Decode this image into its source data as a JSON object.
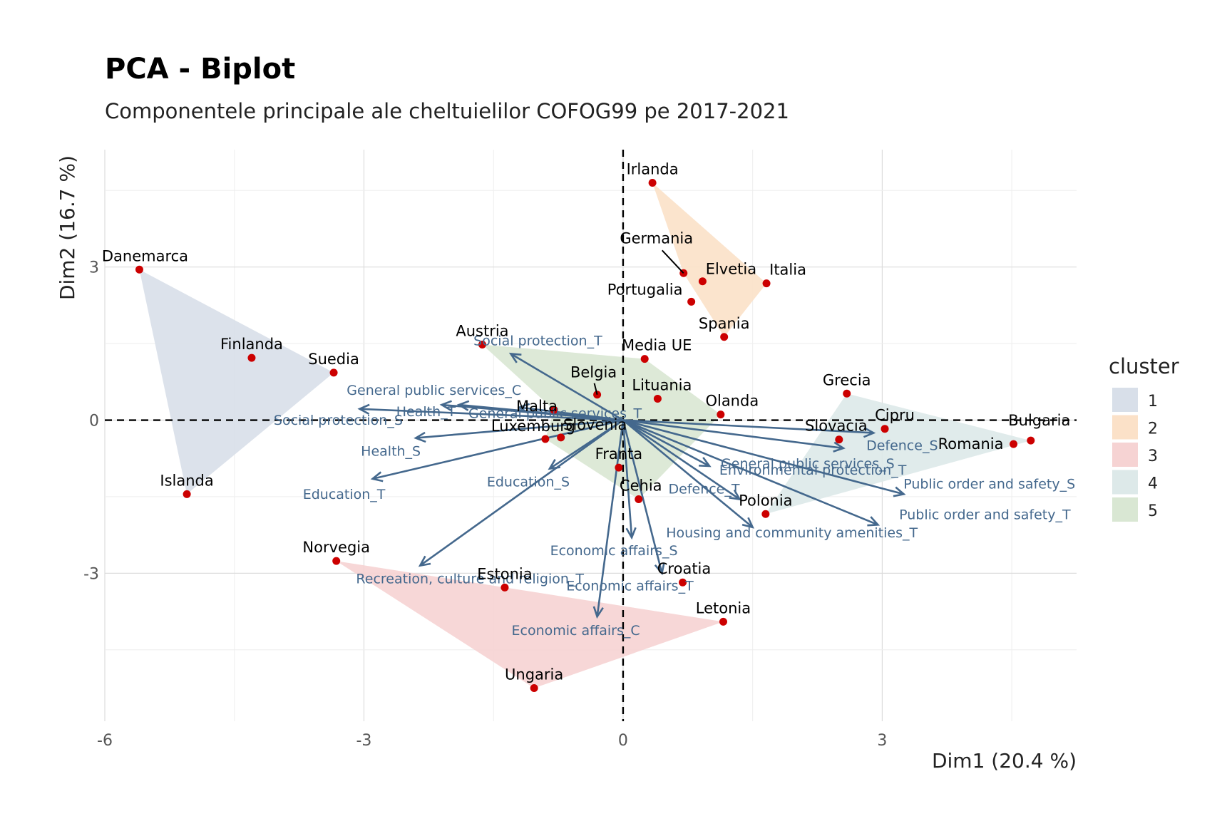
{
  "chart_data": {
    "type": "scatter",
    "subtype": "pca-biplot",
    "title": "PCA - Biplot",
    "subtitle": "Componentele principale ale cheltuielilor COFOG99 pe 2017-2021",
    "xlabel": "Dim1 (20.4 %)",
    "ylabel": "Dim2 (16.7 %)",
    "xlim": [
      -6.0,
      5.25
    ],
    "ylim": [
      -5.9,
      5.3
    ],
    "x_ticks": [
      -6,
      -3,
      0,
      3
    ],
    "y_ticks": [
      -3,
      0,
      3
    ],
    "x_tick_labels": [
      "-6",
      "-3",
      "0",
      "3"
    ],
    "y_tick_labels": [
      "-3",
      "0",
      "3"
    ],
    "grid": true,
    "reference_lines": [
      "x = 0 (dashed)",
      "y = 0 (dashed)"
    ],
    "legend": {
      "title": "cluster",
      "position": "right",
      "entries": [
        {
          "label": "1",
          "color": "#d8dfe9"
        },
        {
          "label": "2",
          "color": "#fbe1c8"
        },
        {
          "label": "3",
          "color": "#f6d3d3"
        },
        {
          "label": "4",
          "color": "#dde9e9"
        },
        {
          "label": "5",
          "color": "#d9e7d3"
        }
      ]
    },
    "point_color": "#cc0000",
    "arrow_color": "#44688d",
    "points": [
      {
        "label": "Danemarca",
        "x": -5.6,
        "y": 2.95,
        "cluster": "1"
      },
      {
        "label": "Finlanda",
        "x": -4.3,
        "y": 1.22,
        "cluster": "1"
      },
      {
        "label": "Suedia",
        "x": -3.35,
        "y": 0.93,
        "cluster": "1"
      },
      {
        "label": "Islanda",
        "x": -5.05,
        "y": -1.45,
        "cluster": "1"
      },
      {
        "label": "Irlanda",
        "x": 0.34,
        "y": 4.65,
        "cluster": "2"
      },
      {
        "label": "Germania",
        "x": 0.7,
        "y": 2.88,
        "cluster": "2"
      },
      {
        "label": "Elvetia",
        "x": 0.92,
        "y": 2.72,
        "cluster": "2"
      },
      {
        "label": "Italia",
        "x": 1.66,
        "y": 2.68,
        "cluster": "2"
      },
      {
        "label": "Portugalia",
        "x": 0.79,
        "y": 2.32,
        "cluster": "2"
      },
      {
        "label": "Spania",
        "x": 1.17,
        "y": 1.63,
        "cluster": "2"
      },
      {
        "label": "Norvegia",
        "x": -3.32,
        "y": -2.76,
        "cluster": "3"
      },
      {
        "label": "Estonia",
        "x": -1.37,
        "y": -3.28,
        "cluster": "3"
      },
      {
        "label": "Letonia",
        "x": 1.16,
        "y": -3.95,
        "cluster": "3"
      },
      {
        "label": "Ungaria",
        "x": -1.03,
        "y": -5.25,
        "cluster": "3"
      },
      {
        "label": "Croatia",
        "x": 0.69,
        "y": -3.18,
        "cluster": "3"
      },
      {
        "label": "Grecia",
        "x": 2.59,
        "y": 0.52,
        "cluster": "4"
      },
      {
        "label": "Cipru",
        "x": 3.03,
        "y": -0.17,
        "cluster": "4"
      },
      {
        "label": "Bulgaria",
        "x": 4.72,
        "y": -0.4,
        "cluster": "4"
      },
      {
        "label": "Romania",
        "x": 4.52,
        "y": -0.47,
        "cluster": "4"
      },
      {
        "label": "Slovacia",
        "x": 2.5,
        "y": -0.38,
        "cluster": "4"
      },
      {
        "label": "Polonia",
        "x": 1.65,
        "y": -1.84,
        "cluster": "4"
      },
      {
        "label": "Austria",
        "x": -1.63,
        "y": 1.48,
        "cluster": "5"
      },
      {
        "label": "Media UE",
        "x": 0.25,
        "y": 1.2,
        "cluster": "5"
      },
      {
        "label": "Belgia",
        "x": -0.3,
        "y": 0.5,
        "cluster": "5"
      },
      {
        "label": "Lituania",
        "x": 0.4,
        "y": 0.42,
        "cluster": "5"
      },
      {
        "label": "Olanda",
        "x": 1.13,
        "y": 0.11,
        "cluster": "5"
      },
      {
        "label": "Malta",
        "x": -0.8,
        "y": 0.2,
        "cluster": "5"
      },
      {
        "label": "Luxemburg",
        "x": -0.9,
        "y": -0.37,
        "cluster": "5"
      },
      {
        "label": "Slovenia",
        "x": -0.72,
        "y": -0.34,
        "cluster": "5"
      },
      {
        "label": "Franta",
        "x": -0.05,
        "y": -0.93,
        "cluster": "5"
      },
      {
        "label": "Cehia",
        "x": 0.18,
        "y": -1.55,
        "cluster": "5"
      }
    ],
    "hulls": [
      {
        "cluster": "1",
        "points": [
          "Danemarca",
          "Suedia",
          "Islanda"
        ]
      },
      {
        "cluster": "2",
        "points": [
          "Irlanda",
          "Italia",
          "Spania",
          "Germania"
        ]
      },
      {
        "cluster": "3",
        "points": [
          "Norvegia",
          "Letonia",
          "Ungaria"
        ]
      },
      {
        "cluster": "4",
        "points": [
          "Grecia",
          "Bulgaria",
          "Polonia"
        ]
      },
      {
        "cluster": "5",
        "points": [
          "Austria",
          "Media UE",
          "Olanda",
          "Cehia",
          "Luxemburg",
          "Malta"
        ]
      }
    ],
    "variables": [
      {
        "label": "Social protection_T",
        "x": -1.3,
        "y": 1.3
      },
      {
        "label": "General public services_C",
        "x": -1.9,
        "y": 0.3
      },
      {
        "label": "Social protection_S",
        "x": -3.05,
        "y": 0.22
      },
      {
        "label": "Health_T",
        "x": -2.1,
        "y": 0.3
      },
      {
        "label": "General public services_T",
        "x": -1.2,
        "y": 0.25
      },
      {
        "label": "Health_S",
        "x": -2.4,
        "y": -0.35
      },
      {
        "label": "Education_T",
        "x": -2.9,
        "y": -1.15
      },
      {
        "label": "Education_S",
        "x": -0.85,
        "y": -0.95
      },
      {
        "label": "Recreation, culture and religion_T",
        "x": -2.35,
        "y": -2.85
      },
      {
        "label": "Economic affairs_S",
        "x": 0.1,
        "y": -2.3
      },
      {
        "label": "Economic affairs_T",
        "x": 0.45,
        "y": -3.0
      },
      {
        "label": "Economic affairs_C",
        "x": -0.3,
        "y": -3.85
      },
      {
        "label": "General public services_S",
        "x": 2.55,
        "y": -0.55
      },
      {
        "label": "Defence_S",
        "x": 2.9,
        "y": -0.25
      },
      {
        "label": "Environmental protection_T",
        "x": 1.0,
        "y": -0.9
      },
      {
        "label": "Defence_T",
        "x": 1.35,
        "y": -1.55
      },
      {
        "label": "Housing and community amenities_T",
        "x": 1.5,
        "y": -2.1
      },
      {
        "label": "Public order and safety_S",
        "x": 3.25,
        "y": -1.45
      },
      {
        "label": "Public order and safety_T",
        "x": 2.95,
        "y": -2.05
      }
    ]
  }
}
